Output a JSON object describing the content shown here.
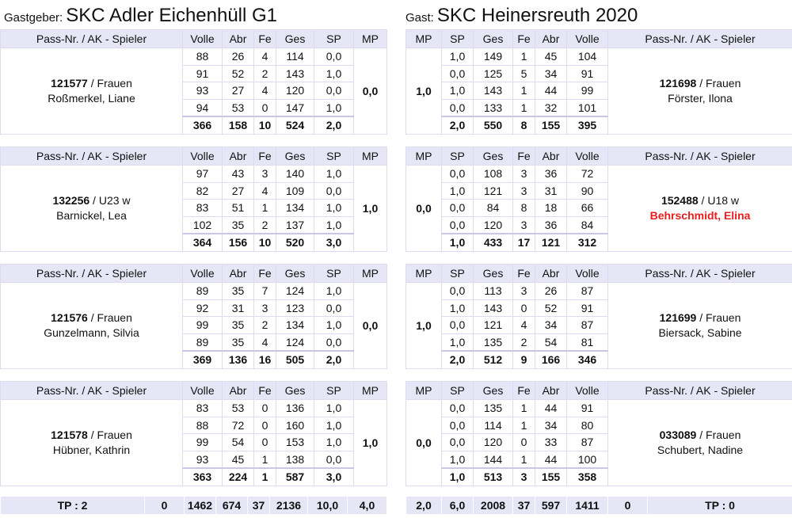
{
  "home": {
    "role": "Gastgeber:",
    "name": "SKC Adler Eichenhüll G1"
  },
  "guest": {
    "role": "Gast:",
    "name": "SKC Heinersreuth 2020"
  },
  "columns": {
    "pass": "Pass-Nr. / AK - Spieler",
    "volle": "Volle",
    "abr": "Abr",
    "fe": "Fe",
    "ges": "Ges",
    "sp": "SP",
    "mp": "MP"
  },
  "matches": [
    {
      "home": {
        "pass_nr": "121577",
        "ak": " / Frauen",
        "name": "Roßmerkel, Liane",
        "mp": "0,0",
        "rows": [
          [
            "88",
            "26",
            "4",
            "114",
            "0,0"
          ],
          [
            "91",
            "52",
            "2",
            "143",
            "1,0"
          ],
          [
            "93",
            "27",
            "4",
            "120",
            "0,0"
          ],
          [
            "94",
            "53",
            "0",
            "147",
            "1,0"
          ]
        ],
        "total": [
          "366",
          "158",
          "10",
          "524",
          "2,0"
        ]
      },
      "guest": {
        "pass_nr": "121698",
        "ak": " / Frauen",
        "name": "Förster, Ilona",
        "mp": "1,0",
        "rows": [
          [
            "1,0",
            "149",
            "1",
            "45",
            "104"
          ],
          [
            "0,0",
            "125",
            "5",
            "34",
            "91"
          ],
          [
            "1,0",
            "143",
            "1",
            "44",
            "99"
          ],
          [
            "0,0",
            "133",
            "1",
            "32",
            "101"
          ]
        ],
        "total": [
          "2,0",
          "550",
          "8",
          "155",
          "395"
        ]
      }
    },
    {
      "home": {
        "pass_nr": "132256",
        "ak": " / U23 w",
        "name": "Barnickel, Lea",
        "mp": "1,0",
        "rows": [
          [
            "97",
            "43",
            "3",
            "140",
            "1,0"
          ],
          [
            "82",
            "27",
            "4",
            "109",
            "0,0"
          ],
          [
            "83",
            "51",
            "1",
            "134",
            "1,0"
          ],
          [
            "102",
            "35",
            "2",
            "137",
            "1,0"
          ]
        ],
        "total": [
          "364",
          "156",
          "10",
          "520",
          "3,0"
        ]
      },
      "guest": {
        "pass_nr": "152488",
        "ak": " / U18 w",
        "name": "Behrschmidt, Elina",
        "mp": "0,0",
        "name_color": "#e8201e",
        "rows": [
          [
            "0,0",
            "108",
            "3",
            "36",
            "72"
          ],
          [
            "1,0",
            "121",
            "3",
            "31",
            "90"
          ],
          [
            "0,0",
            "84",
            "8",
            "18",
            "66"
          ],
          [
            "0,0",
            "120",
            "3",
            "36",
            "84"
          ]
        ],
        "total": [
          "1,0",
          "433",
          "17",
          "121",
          "312"
        ]
      }
    },
    {
      "home": {
        "pass_nr": "121576",
        "ak": " / Frauen",
        "name": "Gunzelmann, Silvia",
        "mp": "0,0",
        "rows": [
          [
            "89",
            "35",
            "7",
            "124",
            "1,0"
          ],
          [
            "92",
            "31",
            "3",
            "123",
            "0,0"
          ],
          [
            "99",
            "35",
            "2",
            "134",
            "1,0"
          ],
          [
            "89",
            "35",
            "4",
            "124",
            "0,0"
          ]
        ],
        "total": [
          "369",
          "136",
          "16",
          "505",
          "2,0"
        ]
      },
      "guest": {
        "pass_nr": "121699",
        "ak": " / Frauen",
        "name": "Biersack, Sabine",
        "mp": "1,0",
        "rows": [
          [
            "0,0",
            "113",
            "3",
            "26",
            "87"
          ],
          [
            "1,0",
            "143",
            "0",
            "52",
            "91"
          ],
          [
            "0,0",
            "121",
            "4",
            "34",
            "87"
          ],
          [
            "1,0",
            "135",
            "2",
            "54",
            "81"
          ]
        ],
        "total": [
          "2,0",
          "512",
          "9",
          "166",
          "346"
        ]
      }
    },
    {
      "home": {
        "pass_nr": "121578",
        "ak": " / Frauen",
        "name": "Hübner, Kathrin",
        "mp": "1,0",
        "rows": [
          [
            "83",
            "53",
            "0",
            "136",
            "1,0"
          ],
          [
            "88",
            "72",
            "0",
            "160",
            "1,0"
          ],
          [
            "99",
            "54",
            "0",
            "153",
            "1,0"
          ],
          [
            "93",
            "45",
            "1",
            "138",
            "0,0"
          ]
        ],
        "total": [
          "363",
          "224",
          "1",
          "587",
          "3,0"
        ]
      },
      "guest": {
        "pass_nr": "033089",
        "ak": " / Frauen",
        "name": "Schubert, Nadine",
        "mp": "0,0",
        "rows": [
          [
            "0,0",
            "135",
            "1",
            "44",
            "91"
          ],
          [
            "0,0",
            "114",
            "1",
            "34",
            "80"
          ],
          [
            "0,0",
            "120",
            "0",
            "33",
            "87"
          ],
          [
            "1,0",
            "144",
            "1",
            "44",
            "100"
          ]
        ],
        "total": [
          "1,0",
          "513",
          "3",
          "155",
          "358"
        ]
      }
    }
  ],
  "totals": {
    "home": [
      "TP : 2",
      "0",
      "1462",
      "674",
      "37",
      "2136",
      "10,0",
      "4,0"
    ],
    "guest": [
      "2,0",
      "6,0",
      "2008",
      "37",
      "597",
      "1411",
      "0",
      "TP : 0"
    ]
  }
}
